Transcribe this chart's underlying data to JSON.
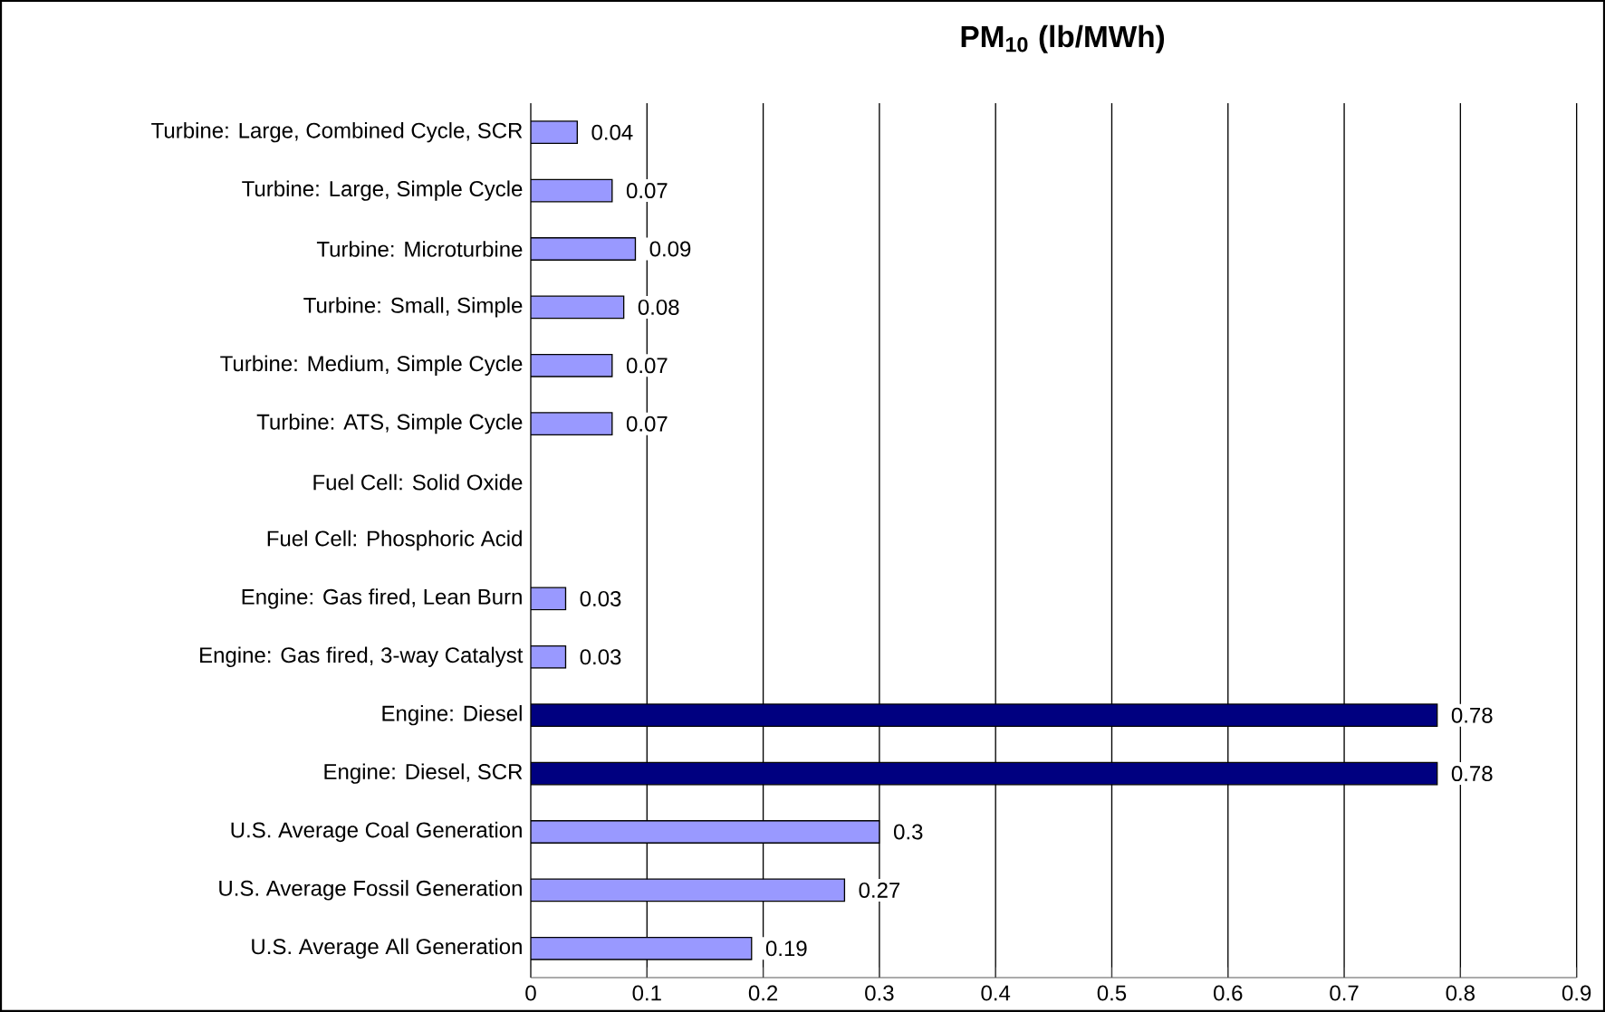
{
  "chart_data": {
    "type": "bar",
    "orientation": "horizontal",
    "title": "PM$_{10}$ (lb/MWh)",
    "categories": [
      "Turbine: Large, Combined Cycle, SCR",
      "Turbine: Large, Simple Cycle",
      "Turbine: Microturbine",
      "Turbine: Small, Simple",
      "Turbine: Medium, Simple Cycle",
      "Turbine: ATS, Simple Cycle",
      "Fuel Cell: Solid Oxide",
      "Fuel Cell: Phosphoric Acid",
      "Engine: Gas fired, Lean Burn",
      "Engine: Gas fired, 3-way Catalyst",
      "Engine: Diesel",
      "Engine: Diesel, SCR",
      "U.S. Average Coal Generation",
      "U.S. Average Fossil Generation",
      "U.S. Average All Generation"
    ],
    "values": [
      0.04,
      0.07,
      0.09,
      0.08,
      0.07,
      0.07,
      null,
      null,
      0.03,
      0.03,
      0.78,
      0.78,
      0.3,
      0.27,
      0.19
    ],
    "value_labels": [
      "0.04",
      "0.07",
      "0.09",
      "0.08",
      "0.07",
      "0.07",
      null,
      null,
      "0.03",
      "0.03",
      "0.78",
      "0.78",
      "0.3",
      "0.27",
      "0.19"
    ],
    "colors": [
      "#9999ff",
      "#9999ff",
      "#9999ff",
      "#9999ff",
      "#9999ff",
      "#9999ff",
      "#9999ff",
      "#9999ff",
      "#9999ff",
      "#9999ff",
      "#000080",
      "#000080",
      "#9999ff",
      "#9999ff",
      "#9999ff"
    ],
    "xlim": [
      0,
      0.9
    ],
    "xticks": [
      0,
      0.1,
      0.2,
      0.3,
      0.4,
      0.5,
      0.6,
      0.7,
      0.8,
      0.9
    ],
    "grid": "x"
  }
}
